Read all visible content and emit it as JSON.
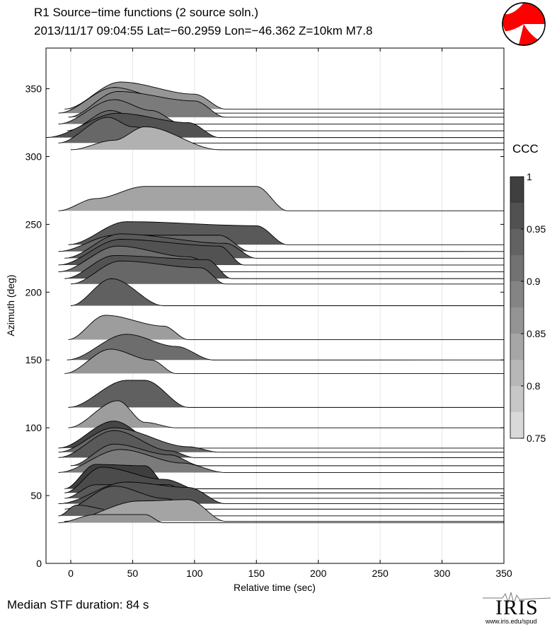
{
  "header": {
    "title_line1": "R1 Source−time functions (2 source soln.)",
    "title_line2": "2013/11/17 09:04:55  Lat=−60.2959 Lon=−46.362  Z=10km  M7.8"
  },
  "footer": {
    "median": "Median STF duration: 84 s",
    "logo_text": "IRIS",
    "logo_url": "www.iris.edu/spud"
  },
  "colorbar": {
    "title": "CCC",
    "ticks": [
      {
        "v": 1,
        "label": "1"
      },
      {
        "v": 0.95,
        "label": "0.95"
      },
      {
        "v": 0.9,
        "label": "0.9"
      },
      {
        "v": 0.85,
        "label": "0.85"
      },
      {
        "v": 0.8,
        "label": "0.8"
      },
      {
        "v": 0.75,
        "label": "0.75"
      }
    ],
    "range": [
      0.75,
      1.0
    ]
  },
  "chart_data": {
    "type": "area",
    "title": "R1 Source−time functions (2 source soln.)",
    "xlabel": "Relative time (sec)",
    "ylabel": "Azimuth (deg)",
    "xlim": [
      -20,
      350
    ],
    "ylim": [
      0,
      380
    ],
    "xticks": [
      0,
      50,
      100,
      150,
      200,
      250,
      300,
      350
    ],
    "yticks": [
      0,
      50,
      100,
      150,
      200,
      250,
      300,
      350
    ],
    "grid": "vertical",
    "amplitude_scale_deg": 20,
    "traces": [
      {
        "az": 335,
        "ccc": 0.86,
        "start": -5,
        "peaks": [
          [
            40,
            1.0
          ],
          [
            100,
            0.55
          ]
        ],
        "end": 125
      },
      {
        "az": 332,
        "ccc": 0.88,
        "start": -10,
        "peaks": [
          [
            35,
            0.95
          ],
          [
            75,
            0.55
          ]
        ],
        "end": 100
      },
      {
        "az": 329,
        "ccc": 0.9,
        "start": -2,
        "peaks": [
          [
            38,
            0.95
          ],
          [
            100,
            0.6
          ]
        ],
        "end": 125
      },
      {
        "az": 324,
        "ccc": 0.91,
        "start": -10,
        "peaks": [
          [
            35,
            0.9
          ],
          [
            65,
            0.5
          ]
        ],
        "end": 90
      },
      {
        "az": 319,
        "ccc": 0.93,
        "start": -3,
        "peaks": [
          [
            32,
            0.75
          ],
          [
            55,
            0.45
          ]
        ],
        "end": 100
      },
      {
        "az": 314,
        "ccc": 0.96,
        "start": -20,
        "peaks": [
          [
            38,
            0.9
          ],
          [
            95,
            0.55
          ]
        ],
        "end": 120
      },
      {
        "az": 310,
        "ccc": 0.93,
        "start": -10,
        "peaks": [
          [
            30,
            0.95
          ],
          [
            50,
            0.6
          ]
        ],
        "end": 90
      },
      {
        "az": 305,
        "ccc": 0.82,
        "start": 0,
        "peaks": [
          [
            35,
            0.35
          ],
          [
            60,
            0.85
          ]
        ],
        "end": 120
      },
      {
        "az": 260,
        "ccc": 0.84,
        "start": -10,
        "peaks": [
          [
            20,
            0.45
          ],
          [
            60,
            0.9
          ],
          [
            150,
            0.9
          ]
        ],
        "end": 175
      },
      {
        "az": 235,
        "ccc": 0.95,
        "start": -2,
        "peaks": [
          [
            45,
            0.85
          ],
          [
            150,
            0.7
          ]
        ],
        "end": 175
      },
      {
        "az": 230,
        "ccc": 0.93,
        "start": -10,
        "peaks": [
          [
            35,
            0.6
          ],
          [
            120,
            0.6
          ]
        ],
        "end": 145
      },
      {
        "az": 225,
        "ccc": 0.95,
        "start": -5,
        "peaks": [
          [
            40,
            0.9
          ],
          [
            125,
            0.55
          ]
        ],
        "end": 150
      },
      {
        "az": 220,
        "ccc": 0.96,
        "start": -10,
        "peaks": [
          [
            40,
            0.95
          ],
          [
            120,
            0.7
          ]
        ],
        "end": 140
      },
      {
        "az": 215,
        "ccc": 0.92,
        "start": -10,
        "peaks": [
          [
            38,
            0.95
          ],
          [
            95,
            0.55
          ]
        ],
        "end": 125
      },
      {
        "az": 210,
        "ccc": 0.96,
        "start": -5,
        "peaks": [
          [
            35,
            0.85
          ],
          [
            110,
            0.7
          ]
        ],
        "end": 130
      },
      {
        "az": 206,
        "ccc": 0.93,
        "start": 0,
        "peaks": [
          [
            40,
            0.85
          ],
          [
            105,
            0.6
          ]
        ],
        "end": 125
      },
      {
        "az": 190,
        "ccc": 0.94,
        "start": 0,
        "peaks": [
          [
            33,
            1.0
          ]
        ],
        "end": 75
      },
      {
        "az": 165,
        "ccc": 0.85,
        "start": -2,
        "peaks": [
          [
            28,
            0.9
          ],
          [
            75,
            0.5
          ]
        ],
        "end": 95
      },
      {
        "az": 150,
        "ccc": 0.92,
        "start": -3,
        "peaks": [
          [
            45,
            0.95
          ],
          [
            85,
            0.5
          ]
        ],
        "end": 115
      },
      {
        "az": 140,
        "ccc": 0.86,
        "start": -5,
        "peaks": [
          [
            32,
            0.9
          ],
          [
            65,
            0.5
          ]
        ],
        "end": 85
      },
      {
        "az": 115,
        "ccc": 0.94,
        "start": -2,
        "peaks": [
          [
            45,
            1.0
          ],
          [
            60,
            1.0
          ]
        ],
        "end": 95
      },
      {
        "az": 100,
        "ccc": 0.85,
        "start": -2,
        "peaks": [
          [
            38,
            1.0
          ],
          [
            60,
            0.2
          ]
        ],
        "end": 85
      },
      {
        "az": 85,
        "ccc": 0.98,
        "start": -10,
        "peaks": [
          [
            35,
            1.0
          ],
          [
            70,
            0.2
          ]
        ],
        "end": 90
      },
      {
        "az": 82,
        "ccc": 0.93,
        "start": -10,
        "peaks": [
          [
            35,
            0.9
          ],
          [
            95,
            0.2
          ]
        ],
        "end": 120
      },
      {
        "az": 78,
        "ccc": 0.95,
        "start": -10,
        "peaks": [
          [
            35,
            1.0
          ],
          [
            80,
            0.25
          ]
        ],
        "end": 100
      },
      {
        "az": 72,
        "ccc": 0.93,
        "start": 0,
        "peaks": [
          [
            35,
            0.8
          ],
          [
            80,
            0.4
          ]
        ],
        "end": 105
      },
      {
        "az": 67,
        "ccc": 0.9,
        "start": -10,
        "peaks": [
          [
            40,
            0.85
          ],
          [
            90,
            0.35
          ]
        ],
        "end": 125
      },
      {
        "az": 55,
        "ccc": 0.99,
        "start": -5,
        "peaks": [
          [
            20,
            0.9
          ],
          [
            60,
            0.85
          ]
        ],
        "end": 80
      },
      {
        "az": 52,
        "ccc": 0.97,
        "start": -5,
        "peaks": [
          [
            25,
            0.95
          ],
          [
            75,
            0.5
          ]
        ],
        "end": 110
      },
      {
        "az": 48,
        "ccc": 0.95,
        "start": -5,
        "peaks": [
          [
            20,
            0.5
          ],
          [
            80,
            0.5
          ]
        ],
        "end": 95
      },
      {
        "az": 44,
        "ccc": 0.96,
        "start": -10,
        "peaks": [
          [
            45,
            0.8
          ],
          [
            95,
            0.6
          ]
        ],
        "end": 125
      },
      {
        "az": 40,
        "ccc": 0.95,
        "start": -5,
        "peaks": [
          [
            35,
            0.85
          ],
          [
            75,
            0.4
          ]
        ],
        "end": 105
      },
      {
        "az": 35,
        "ccc": 0.94,
        "start": -10,
        "peaks": [
          [
            5,
            0.4
          ],
          [
            35,
            0.2
          ]
        ],
        "end": 65
      },
      {
        "az": 31,
        "ccc": 0.84,
        "start": -5,
        "peaks": [
          [
            55,
            0.75
          ],
          [
            95,
            0.8
          ]
        ],
        "end": 125
      },
      {
        "az": 30,
        "ccc": 0.86,
        "start": -10,
        "peaks": [
          [
            20,
            0.3
          ],
          [
            60,
            0.3
          ]
        ],
        "end": 75
      }
    ]
  }
}
